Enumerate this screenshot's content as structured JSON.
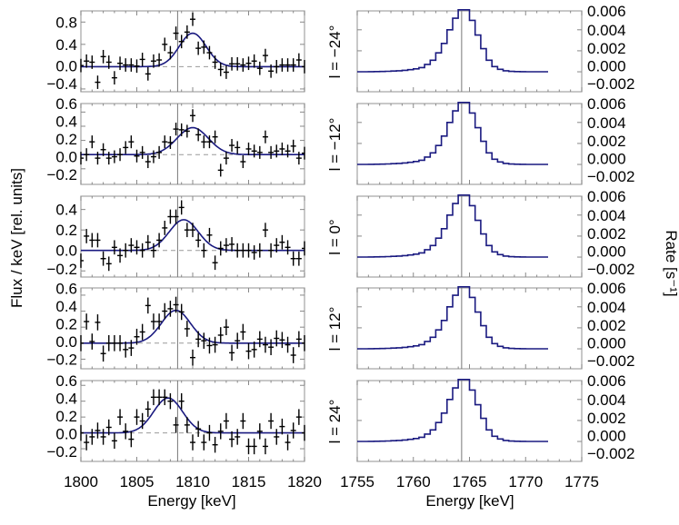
{
  "colors": {
    "fit": "#1a1a80",
    "data": "#000000",
    "frame": "#aaaaaa",
    "zero_line": "#999999",
    "ref_line": "#777777"
  },
  "labels": {
    "left_ylabel": "Flux / keV [rel. units]",
    "right_ylabel": "Rate [s⁻¹]",
    "left_xlabel": "Energy [keV]",
    "right_xlabel": "Energy [keV]",
    "panels": [
      "l = −24°",
      "l = −12°",
      "l = 0°",
      "l = 12°",
      "l = 24°"
    ]
  },
  "chart_data": [
    {
      "type": "scatter",
      "panel": "l = −24°",
      "xlim": [
        1800,
        1820
      ],
      "ylim": [
        -0.45,
        1.0
      ],
      "ref_line_x": 1808.65,
      "yticks": [
        -0.4,
        0.0,
        0.4,
        0.8
      ],
      "xticks": [
        1800,
        1805,
        1810,
        1815,
        1820
      ],
      "x_start": 1800,
      "x_step": 0.5,
      "error": 0.12,
      "y": [
        0.02,
        0.1,
        0.08,
        -0.28,
        0.18,
        0.08,
        -0.2,
        0.06,
        0.03,
        0.03,
        0.01,
        0.13,
        -0.13,
        0.1,
        0.12,
        0.4,
        0.25,
        0.6,
        0.45,
        0.62,
        0.85,
        0.33,
        0.35,
        0.25,
        0.08,
        -0.05,
        -0.1,
        0.05,
        0.05,
        0.03,
        0.06,
        0.1,
        -0.03,
        0.2,
        -0.08,
        0.0,
        0.03,
        0.03,
        0.03,
        0.12,
        0.0
      ],
      "fit": {
        "amplitude": 0.6,
        "center": 1810.0,
        "sigma": 1.2
      }
    },
    {
      "type": "scatter",
      "panel": "l = −12°",
      "xlim": [
        1800,
        1820
      ],
      "ylim": [
        -0.42,
        0.72
      ],
      "ref_line_x": 1808.65,
      "yticks": [
        -0.2,
        0.0,
        0.2,
        0.4,
        0.6
      ],
      "xticks": [
        1800,
        1805,
        1810,
        1815,
        1820
      ],
      "x_start": 1800,
      "x_step": 0.5,
      "error": 0.09,
      "y": [
        -0.05,
        0.0,
        0.18,
        -0.05,
        0.07,
        -0.05,
        -0.03,
        0.0,
        0.1,
        0.18,
        -0.02,
        0.03,
        -0.1,
        -0.03,
        0.03,
        0.18,
        0.17,
        0.36,
        0.35,
        0.33,
        0.55,
        0.28,
        0.18,
        0.18,
        0.25,
        -0.22,
        -0.05,
        0.13,
        0.1,
        -0.1,
        0.08,
        0.05,
        0.03,
        0.25,
        0.03,
        0.05,
        0.08,
        0.05,
        0.12,
        -0.05,
        0.02
      ],
      "fit": {
        "amplitude": 0.38,
        "center": 1810.0,
        "sigma": 1.4
      }
    },
    {
      "type": "scatter",
      "panel": "l = 0°",
      "xlim": [
        1800,
        1820
      ],
      "ylim": [
        -0.26,
        0.53
      ],
      "ref_line_x": 1808.65,
      "yticks": [
        -0.2,
        0.0,
        0.2,
        0.4
      ],
      "xticks": [
        1800,
        1805,
        1810,
        1815,
        1820
      ],
      "x_start": 1800,
      "x_step": 0.5,
      "error": 0.07,
      "y": [
        -0.1,
        0.14,
        0.1,
        0.1,
        -0.08,
        -0.13,
        0.03,
        -0.05,
        0.0,
        0.05,
        0.03,
        0.0,
        0.08,
        0.0,
        0.1,
        0.22,
        0.33,
        0.33,
        0.42,
        0.2,
        0.2,
        0.1,
        0.0,
        0.15,
        -0.12,
        0.02,
        0.05,
        0.06,
        0.0,
        0.0,
        0.0,
        -0.02,
        0.0,
        0.2,
        0.0,
        0.05,
        0.08,
        0.03,
        -0.08,
        -0.08,
        0.02
      ],
      "fit": {
        "amplitude": 0.3,
        "center": 1809.2,
        "sigma": 1.3
      }
    },
    {
      "type": "scatter",
      "panel": "l = 12°",
      "xlim": [
        1800,
        1820
      ],
      "ylim": [
        -0.32,
        0.69
      ],
      "ref_line_x": 1808.65,
      "yticks": [
        -0.2,
        0.0,
        0.2,
        0.4,
        0.6
      ],
      "xticks": [
        1800,
        1805,
        1810,
        1815,
        1820
      ],
      "x_start": 1800,
      "x_step": 0.5,
      "error": 0.1,
      "y": [
        0.0,
        0.27,
        0.02,
        0.26,
        -0.13,
        0.0,
        0.0,
        0.0,
        -0.08,
        -0.06,
        0.08,
        0.14,
        0.47,
        0.27,
        0.27,
        0.4,
        0.43,
        0.48,
        0.39,
        0.18,
        -0.18,
        0.05,
        0.03,
        -0.03,
        -0.02,
        0.1,
        0.2,
        -0.12,
        0.03,
        0.14,
        -0.1,
        -0.08,
        0.05,
        -0.02,
        -0.05,
        0.06,
        0.04,
        -0.02,
        -0.15,
        0.05,
        0.0
      ],
      "fit": {
        "amplitude": 0.41,
        "center": 1808.5,
        "sigma": 1.3
      }
    },
    {
      "type": "scatter",
      "panel": "l = 24°",
      "xlim": [
        1800,
        1820
      ],
      "ylim": [
        -0.36,
        0.66
      ],
      "ref_line_x": 1808.65,
      "yticks": [
        -0.2,
        0.0,
        0.2,
        0.4,
        0.6
      ],
      "xticks": [
        1800,
        1805,
        1810,
        1815,
        1820
      ],
      "x_start": 1800,
      "x_step": 0.5,
      "error": 0.1,
      "y": [
        0.0,
        -0.12,
        -0.05,
        0.03,
        -0.05,
        0.07,
        -0.1,
        0.2,
        0.02,
        -0.08,
        0.2,
        0.15,
        0.3,
        0.45,
        0.45,
        0.45,
        0.4,
        0.1,
        0.4,
        0.1,
        -0.12,
        0.05,
        -0.12,
        0.0,
        -0.15,
        0.02,
        0.15,
        -0.08,
        -0.05,
        0.15,
        -0.17,
        -0.17,
        0.02,
        -0.17,
        0.15,
        -0.05,
        0.08,
        -0.12,
        0.03,
        0.2,
        0.0
      ],
      "fit": {
        "amplitude": 0.44,
        "center": 1807.8,
        "sigma": 1.3
      }
    },
    {
      "type": "histogram",
      "panel": "l = −24°",
      "xlim": [
        1755,
        1775
      ],
      "ylim": [
        -0.0019,
        0.0058
      ],
      "ref_line_x": 1764.3,
      "yticks": [
        -0.002,
        0.0,
        0.002,
        0.004,
        0.006
      ],
      "xticks": [
        1755,
        1760,
        1765,
        1770,
        1775
      ],
      "bin_start": 1755,
      "bin_width": 0.5,
      "values": [
        0,
        0,
        1e-05,
        2e-05,
        3e-05,
        5e-05,
        7e-05,
        0.0001,
        0.00014,
        0.0002,
        0.00028,
        0.0004,
        0.0007,
        0.0011,
        0.0018,
        0.0027,
        0.004,
        0.0051,
        0.0059,
        0.0059,
        0.0049,
        0.0035,
        0.0022,
        0.0011,
        0.0005,
        0.00024,
        0.0001,
        4e-05,
        2e-05,
        1e-05,
        0,
        0,
        0,
        0
      ]
    },
    {
      "type": "histogram",
      "panel": "l = −12°",
      "xlim": [
        1755,
        1775
      ],
      "ylim": [
        -0.0019,
        0.0058
      ],
      "ref_line_x": 1764.3,
      "yticks": [
        -0.002,
        0.0,
        0.002,
        0.004,
        0.006
      ],
      "xticks": [
        1755,
        1760,
        1765,
        1770,
        1775
      ],
      "bin_start": 1755,
      "bin_width": 0.5,
      "values": [
        0,
        0,
        1e-05,
        2e-05,
        3e-05,
        5e-05,
        7e-05,
        0.0001,
        0.00014,
        0.0002,
        0.00028,
        0.0004,
        0.0007,
        0.0011,
        0.0018,
        0.0027,
        0.004,
        0.0051,
        0.0059,
        0.0059,
        0.0049,
        0.0035,
        0.0022,
        0.0011,
        0.0005,
        0.00024,
        0.0001,
        4e-05,
        2e-05,
        1e-05,
        0,
        0,
        0,
        0
      ]
    },
    {
      "type": "histogram",
      "panel": "l = 0°",
      "xlim": [
        1755,
        1775
      ],
      "ylim": [
        -0.0019,
        0.0058
      ],
      "ref_line_x": 1764.3,
      "yticks": [
        -0.002,
        0.0,
        0.002,
        0.004,
        0.006
      ],
      "xticks": [
        1755,
        1760,
        1765,
        1770,
        1775
      ],
      "bin_start": 1755,
      "bin_width": 0.5,
      "values": [
        0,
        0,
        1e-05,
        2e-05,
        3e-05,
        5e-05,
        7e-05,
        0.0001,
        0.00014,
        0.0002,
        0.00028,
        0.0004,
        0.0007,
        0.0011,
        0.0018,
        0.0027,
        0.004,
        0.0051,
        0.0059,
        0.0059,
        0.0049,
        0.0035,
        0.0022,
        0.0011,
        0.0005,
        0.00024,
        0.0001,
        4e-05,
        2e-05,
        1e-05,
        0,
        0,
        0,
        0
      ]
    },
    {
      "type": "histogram",
      "panel": "l = 12°",
      "xlim": [
        1755,
        1775
      ],
      "ylim": [
        -0.0019,
        0.0058
      ],
      "ref_line_x": 1764.3,
      "yticks": [
        -0.002,
        0.0,
        0.002,
        0.004,
        0.006
      ],
      "xticks": [
        1755,
        1760,
        1765,
        1770,
        1775
      ],
      "bin_start": 1755,
      "bin_width": 0.5,
      "values": [
        0,
        0,
        1e-05,
        2e-05,
        3e-05,
        5e-05,
        7e-05,
        0.0001,
        0.00014,
        0.0002,
        0.00028,
        0.0004,
        0.0007,
        0.0011,
        0.0018,
        0.0027,
        0.004,
        0.0051,
        0.0059,
        0.0059,
        0.0049,
        0.0035,
        0.0022,
        0.0011,
        0.0005,
        0.00024,
        0.0001,
        4e-05,
        2e-05,
        1e-05,
        0,
        0,
        0,
        0
      ]
    },
    {
      "type": "histogram",
      "panel": "l = 24°",
      "xlim": [
        1755,
        1775
      ],
      "ylim": [
        -0.0019,
        0.0058
      ],
      "ref_line_x": 1764.3,
      "yticks": [
        -0.002,
        0.0,
        0.002,
        0.004,
        0.006
      ],
      "xticks": [
        1755,
        1760,
        1765,
        1770,
        1775
      ],
      "bin_start": 1755,
      "bin_width": 0.5,
      "values": [
        0,
        0,
        1e-05,
        2e-05,
        3e-05,
        5e-05,
        7e-05,
        0.0001,
        0.00014,
        0.0002,
        0.00028,
        0.0004,
        0.0007,
        0.0011,
        0.0018,
        0.0027,
        0.004,
        0.0051,
        0.0059,
        0.0059,
        0.0049,
        0.0035,
        0.0022,
        0.0011,
        0.0005,
        0.00024,
        0.0001,
        4e-05,
        2e-05,
        1e-05,
        0,
        0,
        0,
        0
      ]
    }
  ]
}
